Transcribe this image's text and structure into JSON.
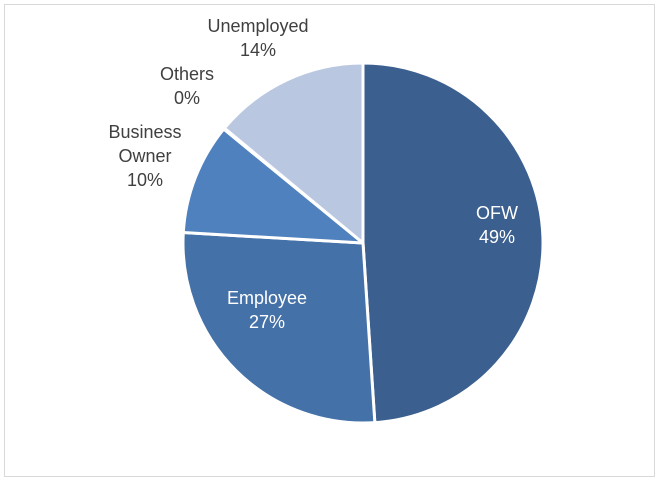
{
  "chart_data": {
    "type": "pie",
    "slices": [
      {
        "label": "OFW",
        "label_lines": [
          "OFW"
        ],
        "percent_label": "49%",
        "value": 49,
        "color": "#3b5f8f",
        "label_color": "#ffffff"
      },
      {
        "label": "Employee",
        "label_lines": [
          "Employee"
        ],
        "percent_label": "27%",
        "value": 27,
        "color": "#4471a8",
        "label_color": "#ffffff"
      },
      {
        "label": "Business Owner",
        "label_lines": [
          "Business",
          "Owner"
        ],
        "percent_label": "10%",
        "value": 10,
        "color": "#4e81bd",
        "label_color": "#404040"
      },
      {
        "label": "Others",
        "label_lines": [
          "Others"
        ],
        "percent_label": "0%",
        "value": 0.1,
        "color": "#7f9fcc",
        "label_color": "#404040"
      },
      {
        "label": "Unemployed",
        "label_lines": [
          "Unemployed"
        ],
        "percent_label": "14%",
        "value": 14,
        "color": "#b9c7e0",
        "label_color": "#404040"
      }
    ],
    "start_angle_deg": 0,
    "direction": "clockwise",
    "legend": "none"
  }
}
